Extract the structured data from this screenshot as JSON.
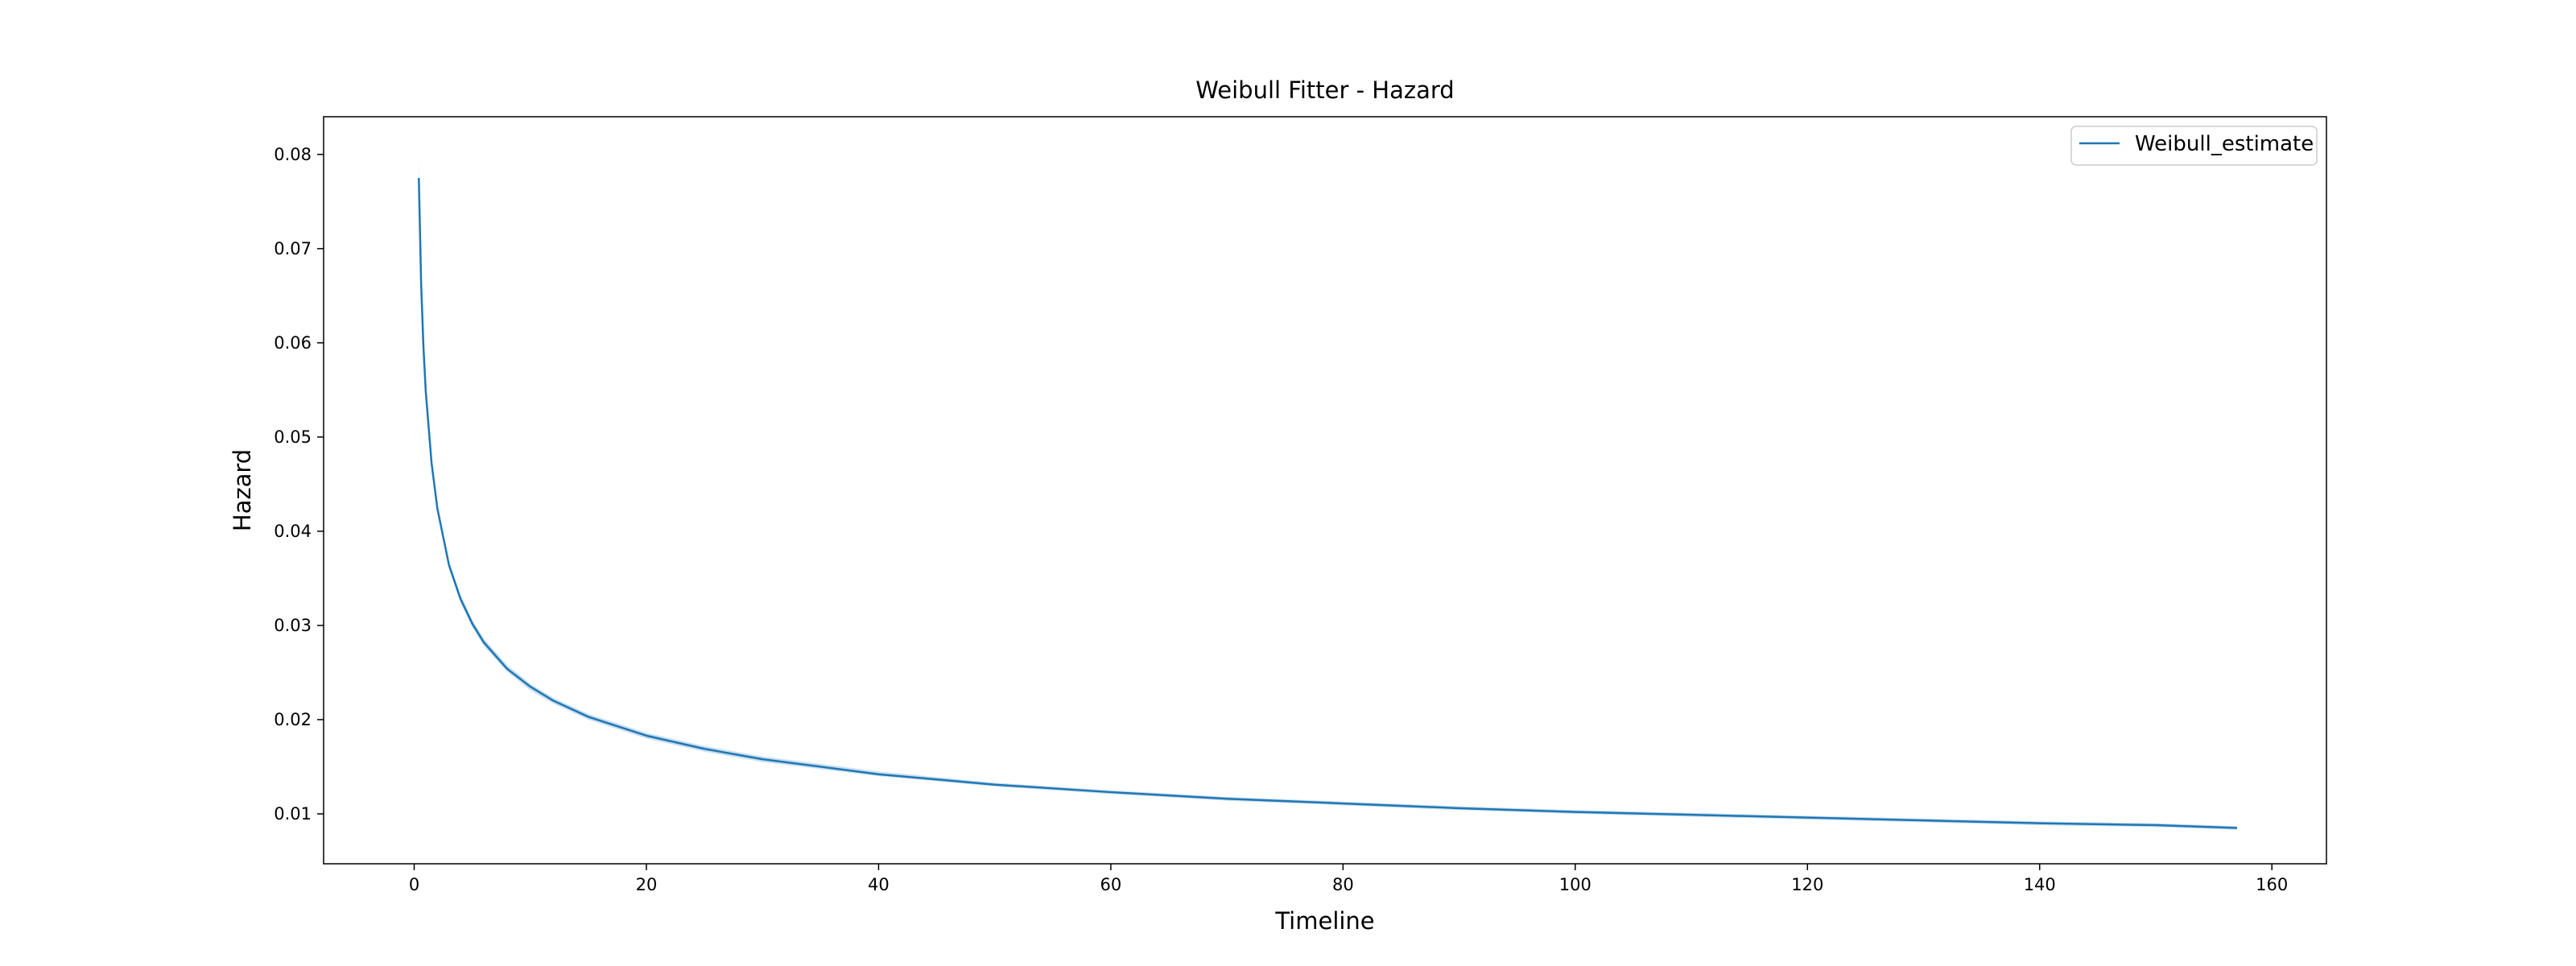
{
  "chart_data": {
    "type": "line",
    "title": "Weibull Fitter - Hazard",
    "xlabel": "Timeline",
    "ylabel": "Hazard",
    "xlim": [
      -7.8,
      164.7
    ],
    "ylim": [
      0.0047,
      0.084
    ],
    "xticks": [
      0,
      20,
      40,
      60,
      80,
      100,
      120,
      140,
      160
    ],
    "xtick_labels": [
      "0",
      "20",
      "40",
      "60",
      "80",
      "100",
      "120",
      "140",
      "160"
    ],
    "yticks": [
      0.01,
      0.02,
      0.03,
      0.04,
      0.05,
      0.06,
      0.07,
      0.08
    ],
    "ytick_labels": [
      "0.01",
      "0.02",
      "0.03",
      "0.04",
      "0.05",
      "0.06",
      "0.07",
      "0.08"
    ],
    "grid": false,
    "legend_position": "top-right",
    "series": [
      {
        "name": "Weibull_estimate",
        "color": "#1f77b4",
        "band_color": "#9cc3e4",
        "x": [
          0.4,
          0.6,
          0.8,
          1,
          1.5,
          2,
          3,
          4,
          5,
          6,
          8,
          10,
          12,
          15,
          20,
          25,
          30,
          40,
          50,
          60,
          70,
          80,
          90,
          100,
          110,
          120,
          130,
          140,
          150,
          157
        ],
        "y": [
          0.0775,
          0.0663,
          0.0595,
          0.0548,
          0.0472,
          0.0424,
          0.0364,
          0.0328,
          0.0302,
          0.0282,
          0.0254,
          0.0235,
          0.022,
          0.0203,
          0.0183,
          0.0169,
          0.0158,
          0.0142,
          0.0131,
          0.0123,
          0.0116,
          0.0111,
          0.0106,
          0.0102,
          0.0099,
          0.0096,
          0.0093,
          0.009,
          0.0088,
          0.0085
        ],
        "ci_lower": [
          0.0765,
          0.0656,
          0.0589,
          0.0543,
          0.0467,
          0.042,
          0.036,
          0.0324,
          0.0298,
          0.0278,
          0.0251,
          0.0231,
          0.0217,
          0.02,
          0.018,
          0.0166,
          0.0155,
          0.014,
          0.0129,
          0.0121,
          0.0114,
          0.0109,
          0.0104,
          0.01,
          0.0097,
          0.0094,
          0.0091,
          0.0088,
          0.0086,
          0.0083
        ],
        "ci_upper": [
          0.0795,
          0.0672,
          0.0602,
          0.0554,
          0.0477,
          0.0429,
          0.0368,
          0.0332,
          0.0306,
          0.0286,
          0.0258,
          0.0238,
          0.0223,
          0.0206,
          0.0186,
          0.0172,
          0.0161,
          0.0145,
          0.0133,
          0.0125,
          0.0118,
          0.0113,
          0.0108,
          0.0104,
          0.0101,
          0.0098,
          0.0095,
          0.0092,
          0.009,
          0.0087
        ]
      }
    ]
  }
}
